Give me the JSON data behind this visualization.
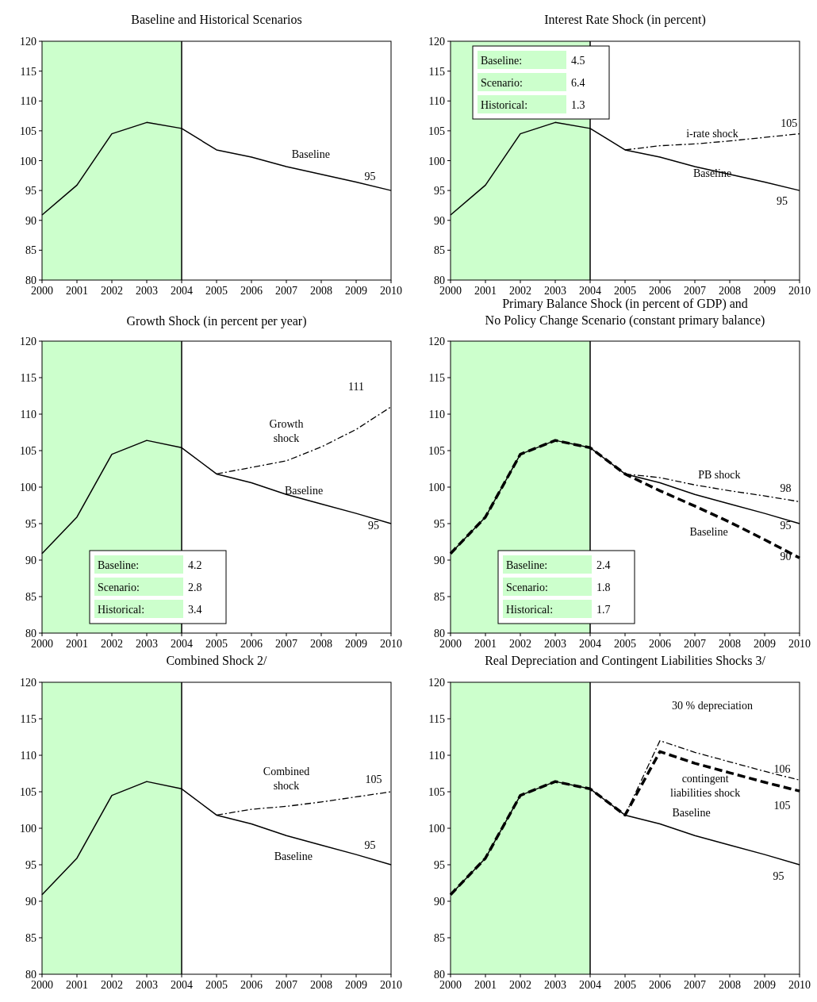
{
  "chart_data": [
    {
      "type": "line",
      "title": "Baseline and Historical Scenarios",
      "x": [
        2000,
        2001,
        2002,
        2003,
        2004,
        2005,
        2006,
        2007,
        2008,
        2009,
        2010
      ],
      "xlim": [
        2000,
        2010
      ],
      "xticks": [
        2000,
        2001,
        2002,
        2003,
        2004,
        2005,
        2006,
        2007,
        2008,
        2009,
        2010
      ],
      "ylim": [
        80,
        120
      ],
      "yticks": [
        80,
        85,
        90,
        95,
        100,
        105,
        110,
        115,
        120
      ],
      "grid": false,
      "series": [
        {
          "color": "#000000",
          "line_style": "solid",
          "values": [
            90.9,
            95.9,
            104.5,
            106.4,
            105.4,
            101.8,
            100.6,
            99.0,
            97.7,
            96.4,
            95.0
          ]
        }
      ],
      "bands": [
        {
          "axis": "x",
          "from": 2000,
          "to": 2004,
          "color": "#ccffcc"
        }
      ],
      "ref_lines": [
        {
          "axis": "x",
          "value": 2004,
          "color": "#000000"
        }
      ],
      "annotations": [
        "Baseline",
        "95"
      ]
    },
    {
      "type": "line",
      "title": "Interest Rate Shock (in percent)",
      "x": [
        2000,
        2001,
        2002,
        2003,
        2004,
        2005,
        2006,
        2007,
        2008,
        2009,
        2010
      ],
      "xlim": [
        2000,
        2010
      ],
      "xticks": [
        2000,
        2001,
        2002,
        2003,
        2004,
        2005,
        2006,
        2007,
        2008,
        2009,
        2010
      ],
      "ylim": [
        80,
        120
      ],
      "yticks": [
        80,
        85,
        90,
        95,
        100,
        105,
        110,
        115,
        120
      ],
      "grid": false,
      "series": [
        {
          "color": "#000000",
          "line_style": "solid",
          "values": [
            90.9,
            95.9,
            104.5,
            106.4,
            105.4,
            101.8,
            100.6,
            99.0,
            97.7,
            96.4,
            95.0
          ]
        },
        {
          "color": "#000000",
          "line_style": "dashdot",
          "x": [
            2005,
            2006,
            2007,
            2008,
            2009,
            2010
          ],
          "values": [
            101.8,
            102.5,
            102.8,
            103.3,
            103.9,
            104.5
          ]
        }
      ],
      "bands": [
        {
          "axis": "x",
          "from": 2000,
          "to": 2004,
          "color": "#ccffcc"
        }
      ],
      "ref_lines": [
        {
          "axis": "x",
          "value": 2004,
          "color": "#000000"
        }
      ],
      "annotations": [
        "Baseline: 4.5",
        "Scenario: 6.4",
        "Historical: 1.3",
        "i-rate shock",
        "105",
        "Baseline",
        "95"
      ]
    },
    {
      "type": "line",
      "title": "Growth Shock (in percent per year)",
      "x": [
        2000,
        2001,
        2002,
        2003,
        2004,
        2005,
        2006,
        2007,
        2008,
        2009,
        2010
      ],
      "xlim": [
        2000,
        2010
      ],
      "xticks": [
        2000,
        2001,
        2002,
        2003,
        2004,
        2005,
        2006,
        2007,
        2008,
        2009,
        2010
      ],
      "ylim": [
        80,
        120
      ],
      "yticks": [
        80,
        85,
        90,
        95,
        100,
        105,
        110,
        115,
        120
      ],
      "grid": false,
      "series": [
        {
          "color": "#000000",
          "line_style": "solid",
          "values": [
            90.9,
            95.9,
            104.5,
            106.4,
            105.4,
            101.8,
            100.6,
            99.0,
            97.7,
            96.4,
            95.0
          ]
        },
        {
          "color": "#000000",
          "line_style": "dashdot",
          "x": [
            2005,
            2006,
            2007,
            2008,
            2009,
            2010
          ],
          "values": [
            101.8,
            102.7,
            103.6,
            105.5,
            107.9,
            111.0
          ]
        }
      ],
      "bands": [
        {
          "axis": "x",
          "from": 2000,
          "to": 2004,
          "color": "#ccffcc"
        }
      ],
      "ref_lines": [
        {
          "axis": "x",
          "value": 2004,
          "color": "#000000"
        }
      ],
      "annotations": [
        "Baseline: 4.2",
        "Scenario: 2.8",
        "Historical: 3.4",
        "Growth\nshock",
        "111",
        "Baseline",
        "95"
      ]
    },
    {
      "type": "line",
      "title": "Primary Balance Shock (in percent of GDP) and\nNo Policy Change Scenario (constant primary balance)",
      "x": [
        2000,
        2001,
        2002,
        2003,
        2004,
        2005,
        2006,
        2007,
        2008,
        2009,
        2010
      ],
      "xlim": [
        2000,
        2010
      ],
      "xticks": [
        2000,
        2001,
        2002,
        2003,
        2004,
        2005,
        2006,
        2007,
        2008,
        2009,
        2010
      ],
      "ylim": [
        80,
        120
      ],
      "yticks": [
        80,
        85,
        90,
        95,
        100,
        105,
        110,
        115,
        120
      ],
      "grid": false,
      "series": [
        {
          "color": "#000000",
          "line_style": "solid",
          "values": [
            90.9,
            95.9,
            104.5,
            106.4,
            105.4,
            101.8,
            100.6,
            99.0,
            97.7,
            96.4,
            95.0
          ]
        },
        {
          "color": "#000000",
          "line_style": "dashdot",
          "x": [
            2005,
            2006,
            2007,
            2008,
            2009,
            2010
          ],
          "values": [
            101.8,
            101.3,
            100.3,
            99.5,
            98.8,
            98.0
          ]
        },
        {
          "color": "#000000",
          "line_style": "dashed",
          "values": [
            90.9,
            95.9,
            104.5,
            106.4,
            105.4,
            101.8,
            99.5,
            97.4,
            95.2,
            92.8,
            90.3
          ]
        }
      ],
      "bands": [
        {
          "axis": "x",
          "from": 2000,
          "to": 2004,
          "color": "#ccffcc"
        }
      ],
      "ref_lines": [
        {
          "axis": "x",
          "value": 2004,
          "color": "#000000"
        }
      ],
      "annotations": [
        "Baseline: 2.4",
        "Scenario: 1.8",
        "Historical: 1.7",
        "PB shock",
        "98",
        "95",
        "Baseline",
        "90"
      ]
    },
    {
      "type": "line",
      "title": "Combined Shock  2/",
      "x": [
        2000,
        2001,
        2002,
        2003,
        2004,
        2005,
        2006,
        2007,
        2008,
        2009,
        2010
      ],
      "xlim": [
        2000,
        2010
      ],
      "xticks": [
        2000,
        2001,
        2002,
        2003,
        2004,
        2005,
        2006,
        2007,
        2008,
        2009,
        2010
      ],
      "ylim": [
        80,
        120
      ],
      "yticks": [
        80,
        85,
        90,
        95,
        100,
        105,
        110,
        115,
        120
      ],
      "grid": false,
      "series": [
        {
          "color": "#000000",
          "line_style": "solid",
          "values": [
            90.9,
            95.9,
            104.5,
            106.4,
            105.4,
            101.8,
            100.6,
            99.0,
            97.7,
            96.4,
            95.0
          ]
        },
        {
          "color": "#000000",
          "line_style": "dashdot",
          "x": [
            2005,
            2006,
            2007,
            2008,
            2009,
            2010
          ],
          "values": [
            101.8,
            102.6,
            103.0,
            103.6,
            104.3,
            105.0
          ]
        }
      ],
      "bands": [
        {
          "axis": "x",
          "from": 2000,
          "to": 2004,
          "color": "#ccffcc"
        }
      ],
      "ref_lines": [
        {
          "axis": "x",
          "value": 2004,
          "color": "#000000"
        }
      ],
      "annotations": [
        "Combined\nshock",
        "105",
        "95",
        "Baseline"
      ]
    },
    {
      "type": "line",
      "title": "Real Depreciation and Contingent Liabilities Shocks  3/",
      "x": [
        2000,
        2001,
        2002,
        2003,
        2004,
        2005,
        2006,
        2007,
        2008,
        2009,
        2010
      ],
      "xlim": [
        2000,
        2010
      ],
      "xticks": [
        2000,
        2001,
        2002,
        2003,
        2004,
        2005,
        2006,
        2007,
        2008,
        2009,
        2010
      ],
      "ylim": [
        80,
        120
      ],
      "yticks": [
        80,
        85,
        90,
        95,
        100,
        105,
        110,
        115,
        120
      ],
      "grid": false,
      "series": [
        {
          "color": "#000000",
          "line_style": "solid",
          "values": [
            90.9,
            95.9,
            104.5,
            106.4,
            105.4,
            101.8,
            100.6,
            99.0,
            97.7,
            96.4,
            95.0
          ]
        },
        {
          "color": "#000000",
          "line_style": "dashdot",
          "x": [
            2005,
            2006,
            2007,
            2008,
            2009,
            2010
          ],
          "values": [
            101.8,
            112.0,
            110.4,
            109.1,
            107.8,
            106.6
          ]
        },
        {
          "color": "#000000",
          "line_style": "dashed",
          "values": [
            90.9,
            95.9,
            104.5,
            106.4,
            105.4,
            101.8,
            110.5,
            108.9,
            107.6,
            106.3,
            105.1
          ]
        }
      ],
      "bands": [
        {
          "axis": "x",
          "from": 2000,
          "to": 2004,
          "color": "#ccffcc"
        }
      ],
      "ref_lines": [
        {
          "axis": "x",
          "value": 2004,
          "color": "#000000"
        }
      ],
      "annotations": [
        "30 % depreciation",
        "106",
        "contingent\nliabilities shock",
        "105",
        "Baseline",
        "95"
      ]
    }
  ]
}
